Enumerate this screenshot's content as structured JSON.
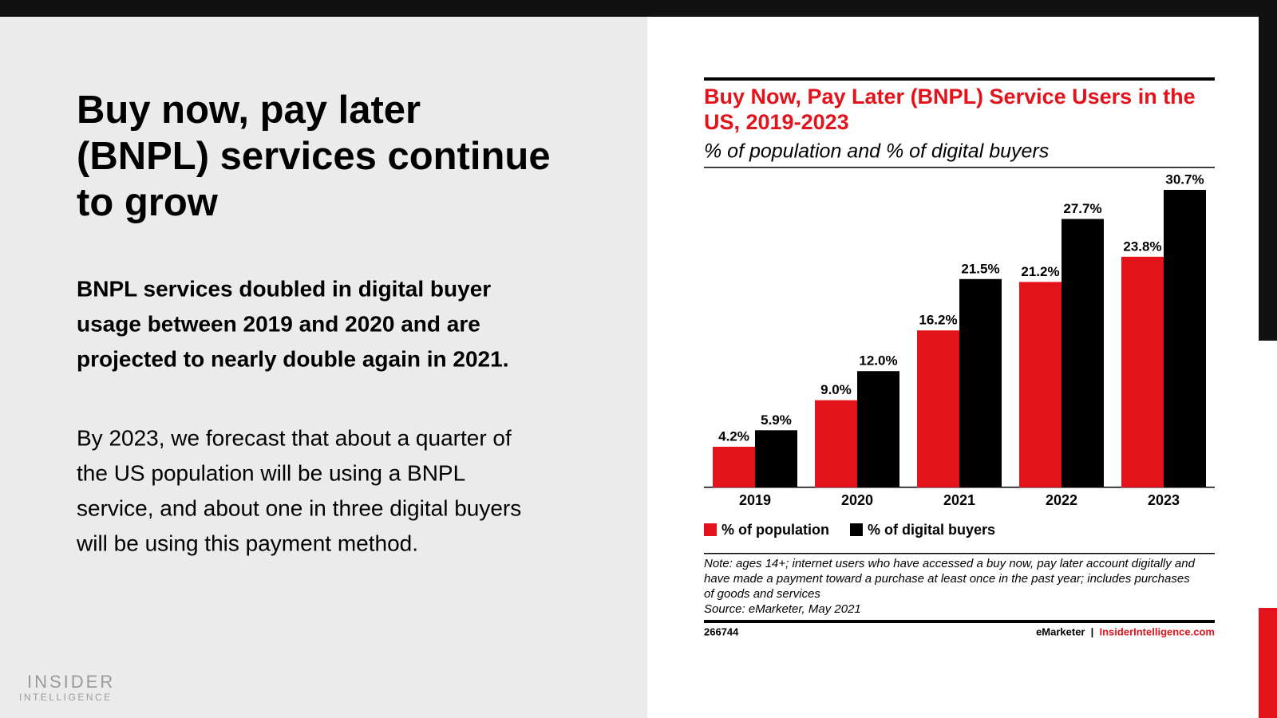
{
  "slide": {
    "heading": [
      "Buy now, pay later",
      "(BNPL) services continue",
      "to grow"
    ],
    "lead": [
      "BNPL services doubled in digital buyer",
      "usage between 2019 and 2020 and are",
      "projected to nearly double again in 2021."
    ],
    "body": [
      "By 2023, we forecast that about a quarter of",
      "the US population will be using a BNPL",
      "service, and about one in three digital buyers",
      "will be using this payment method."
    ],
    "logo": [
      "INSIDER",
      "INTELLIGENCE"
    ]
  },
  "chart_data": {
    "type": "bar",
    "title": [
      "Buy Now, Pay Later (BNPL) Service Users in the",
      "US, 2019-2023"
    ],
    "subtitle": "% of population and % of digital buyers",
    "categories": [
      "2019",
      "2020",
      "2021",
      "2022",
      "2023"
    ],
    "series": [
      {
        "name": "% of population",
        "color": "#e3121b",
        "values": [
          4.2,
          9.0,
          16.2,
          21.2,
          23.8
        ],
        "value_labels": [
          "4.2%",
          "9.0%",
          "16.2%",
          "21.2%",
          "23.8%"
        ]
      },
      {
        "name": "% of digital buyers",
        "color": "#000000",
        "values": [
          5.9,
          12.0,
          21.5,
          27.7,
          30.7
        ],
        "value_labels": [
          "5.9%",
          "12.0%",
          "21.5%",
          "27.7%",
          "30.7%"
        ]
      }
    ],
    "note": [
      "Note: ages 14+; internet users who have accessed a buy now, pay later account digitally and",
      "have made a payment toward a purchase at least once in the past year; includes purchases",
      "of goods and services",
      "Source: eMarketer, May 2021"
    ],
    "chart_id": "266744",
    "publisher": "eMarketer",
    "separator": "|",
    "website": "InsiderIntelligence.com"
  }
}
